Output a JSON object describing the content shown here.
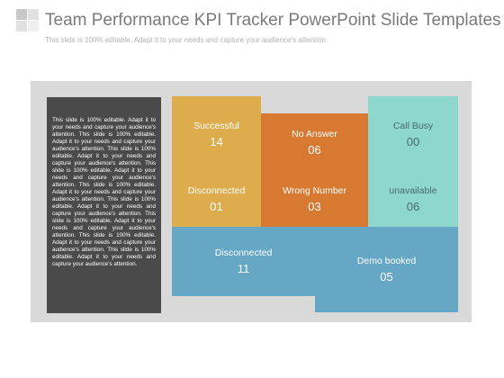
{
  "header": {
    "title": "Team Performance KPI Tracker PowerPoint Slide Templates",
    "subtitle": "This slide is 100% editable. Adapt it to your needs and capture your audience's attention."
  },
  "body_text": "This slide is 100% editable. Adapt it to your needs and capture your audience's attention. This slide is 100% editable. Adapt it to your needs and capture your audience's attention. This slide is 100% editable. Adapt it to your needs and capture your audience's attention. This slide is 100% editable. Adapt it to your needs and capture your audience's attention. This slide is 100% editable. Adapt it to your needs and capture your audience's attention. This slide is 100% editable. Adapt it to your needs and capture your audience's attention. This slide is 100% editable. Adapt it to your needs and capture your audience's attention. This slide is 100% editable. Adapt it to your needs and capture your audience's attention. This slide is 100% editable. Adapt it to your needs and capture your audience's attention.",
  "tiles": [
    {
      "label": "Successful",
      "value": "14"
    },
    {
      "label": "No Answer",
      "value": "06"
    },
    {
      "label": "Call Busy",
      "value": "00"
    },
    {
      "label": "Disconnected",
      "value": "01"
    },
    {
      "label": "Wrong Number",
      "value": "03"
    },
    {
      "label": "unavailable",
      "value": "06"
    },
    {
      "label": "Disconnected",
      "value": "11"
    },
    {
      "label": "Demo booked",
      "value": "05"
    }
  ],
  "colors": {
    "yellow": "#dcac4d",
    "orange": "#d87932",
    "teal": "#8dd7cd",
    "blue": "#65a7c5",
    "dark_box": "#4a4a4a",
    "panel": "#d9d9d9"
  }
}
